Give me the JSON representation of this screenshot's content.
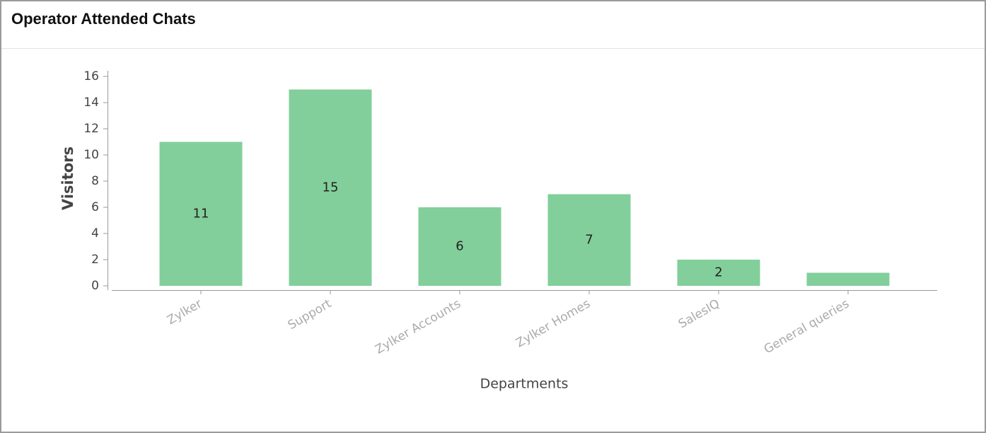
{
  "chart_data": {
    "type": "bar",
    "title": "Operator Attended Chats",
    "x_label": "Departments",
    "y_label": "Visitors",
    "categories": [
      "Zylker",
      "Support",
      "Zylker Accounts",
      "Zylker Homes",
      "SalesIQ",
      "General queries"
    ],
    "values": [
      11,
      15,
      6,
      7,
      2,
      1
    ],
    "value_labels": [
      "11",
      "15",
      "6",
      "7",
      "2",
      null
    ],
    "color": "#82cf9b",
    "ylim": [
      0,
      16
    ],
    "yticks": [
      0,
      2,
      4,
      6,
      8,
      10,
      12,
      14,
      16
    ],
    "grid": false
  }
}
